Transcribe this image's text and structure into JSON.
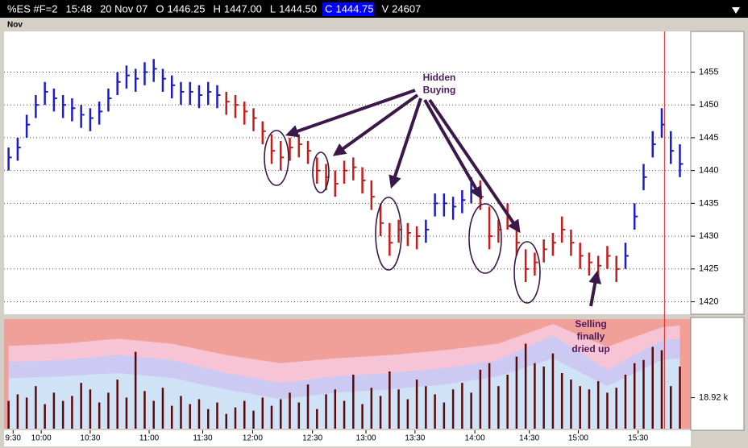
{
  "header": {
    "symbol": "%ES #F=2",
    "time": "15:48",
    "date": "20 Nov 07",
    "quotes": [
      {
        "label": "O",
        "value": "1446.25"
      },
      {
        "label": "H",
        "value": "1447.00"
      },
      {
        "label": "L",
        "value": "1444.50"
      },
      {
        "label": "C",
        "value": "1444.75"
      },
      {
        "label": "V",
        "value": "24607"
      }
    ],
    "month": "Nov"
  },
  "chart_data": {
    "type": "ohlc",
    "annotations": [
      {
        "lines": [
          "Hidden",
          "Buying"
        ]
      },
      {
        "lines": [
          "Selling",
          "finally",
          "dried up"
        ]
      }
    ],
    "ylim": [
      1418.1,
      1461.2
    ],
    "yticks": [
      1420,
      1425,
      1430,
      1435,
      1440,
      1445,
      1450,
      1455
    ],
    "grid": true,
    "xlim": [
      -0.5,
      75.2
    ],
    "xticks": [
      {
        "value": 0.5,
        "label": "9:30"
      },
      {
        "value": 3.6,
        "label": "10:00"
      },
      {
        "value": 9,
        "label": "10:30"
      },
      {
        "value": 15.5,
        "label": "11:00"
      },
      {
        "value": 21.4,
        "label": "11:30"
      },
      {
        "value": 26.9,
        "label": "12:00"
      },
      {
        "value": 33.5,
        "label": "12:30"
      },
      {
        "value": 39.4,
        "label": "13:00"
      },
      {
        "value": 44.8,
        "label": "13:30"
      },
      {
        "value": 51.4,
        "label": "14:00"
      },
      {
        "value": 57.4,
        "label": "14:30"
      },
      {
        "value": 62.8,
        "label": "15:00"
      },
      {
        "value": 69.4,
        "label": "15:30"
      }
    ],
    "cursor_index": 72.3,
    "cursor_color": "#e02020",
    "high": [
      1443.5,
      1445,
      1448.5,
      1451.5,
      1453.5,
      1452.5,
      1451.5,
      1451,
      1450,
      1449.5,
      1450.5,
      1452.5,
      1455,
      1456,
      1455.5,
      1456.5,
      1457,
      1455.5,
      1454.5,
      1453.5,
      1453.5,
      1453,
      1453.5,
      1453,
      1452,
      1451.5,
      1450.5,
      1449.5,
      1447.5,
      1445.5,
      1444.5,
      1445,
      1445.5,
      1444.5,
      1442,
      1441,
      1440,
      1441.5,
      1442,
      1440.5,
      1438.5,
      1435,
      1432,
      1432.5,
      1432,
      1431.5,
      1432.5,
      1436.5,
      1436.5,
      1436,
      1437,
      1439,
      1438.5,
      1434.5,
      1432.5,
      1435,
      1431.5,
      1428,
      1427.5,
      1429.5,
      1430.5,
      1433,
      1431,
      1429,
      1427.5,
      1427,
      1428.5,
      1427,
      1429,
      1435,
      1441,
      1446,
      1449.5,
      1446,
      1444
    ],
    "low": [
      1440,
      1441.5,
      1445,
      1448,
      1450,
      1449,
      1448,
      1447.5,
      1446.5,
      1446,
      1447,
      1449,
      1451.5,
      1452.5,
      1452,
      1453,
      1453.5,
      1452,
      1451,
      1450,
      1450,
      1449.5,
      1450,
      1449.5,
      1448.5,
      1448,
      1447,
      1446,
      1444,
      1441,
      1440,
      1441.5,
      1442,
      1441,
      1438,
      1437,
      1436,
      1438,
      1438.5,
      1436.5,
      1434,
      1430,
      1427,
      1429,
      1428.5,
      1428,
      1429,
      1433,
      1433,
      1432.5,
      1433.5,
      1435,
      1434,
      1428,
      1429,
      1431,
      1427,
      1423,
      1424,
      1426,
      1427,
      1429,
      1427,
      1425,
      1424,
      1423.5,
      1425,
      1423,
      1425,
      1431,
      1437,
      1442,
      1445,
      1441,
      1439
    ],
    "close": [
      1442,
      1443.5,
      1447,
      1450,
      1452,
      1451,
      1450,
      1449.5,
      1448.5,
      1448,
      1449,
      1451,
      1453.5,
      1454.5,
      1454,
      1455,
      1455.5,
      1454,
      1453,
      1452,
      1452,
      1451.5,
      1452,
      1451.5,
      1450.5,
      1450,
      1449,
      1448,
      1446,
      1443,
      1442,
      1443.5,
      1444,
      1443,
      1440,
      1439,
      1438,
      1440,
      1440.5,
      1438.5,
      1436,
      1432,
      1429,
      1431,
      1430.5,
      1430,
      1431,
      1435,
      1435,
      1434.5,
      1435.5,
      1437,
      1436,
      1430,
      1431,
      1433,
      1429,
      1425,
      1426,
      1428,
      1429,
      1431,
      1429,
      1427,
      1426,
      1425.5,
      1427,
      1425,
      1427,
      1433,
      1439,
      1444,
      1447,
      1443,
      1441
    ],
    "bar_colors": [
      "#1c1cc8",
      "#1c1cc8",
      "#1c1cc8",
      "#1c1cc8",
      "#1c1cc8",
      "#1c1cc8",
      "#1c1cc8",
      "#1c1cc8",
      "#1c1cc8",
      "#1c1cc8",
      "#1c1cc8",
      "#1c1cc8",
      "#1c1cc8",
      "#1c1cc8",
      "#1c1cc8",
      "#1c1cc8",
      "#1c1cc8",
      "#1c1cc8",
      "#1c1cc8",
      "#1c1cc8",
      "#1c1cc8",
      "#1c1cc8",
      "#1c1cc8",
      "#1c1cc8",
      "#c81c1c",
      "#c81c1c",
      "#c81c1c",
      "#c81c1c",
      "#c81c1c",
      "#c81c1c",
      "#c81c1c",
      "#c81c1c",
      "#c81c1c",
      "#c81c1c",
      "#c81c1c",
      "#c81c1c",
      "#c81c1c",
      "#c81c1c",
      "#c81c1c",
      "#c81c1c",
      "#c81c1c",
      "#c81c1c",
      "#c81c1c",
      "#c81c1c",
      "#c81c1c",
      "#c81c1c",
      "#1c1cc8",
      "#1c1cc8",
      "#1c1cc8",
      "#1c1cc8",
      "#1c1cc8",
      "#1c1cc8",
      "#c81c1c",
      "#c81c1c",
      "#c81c1c",
      "#c81c1c",
      "#c81c1c",
      "#c81c1c",
      "#c81c1c",
      "#c81c1c",
      "#c81c1c",
      "#c81c1c",
      "#c81c1c",
      "#c81c1c",
      "#c81c1c",
      "#c81c1c",
      "#c81c1c",
      "#c81c1c",
      "#1c1cc8",
      "#1c1cc8",
      "#1c1cc8",
      "#1c1cc8",
      "#1c1cc8",
      "#1c1cc8",
      "#1c1cc8"
    ],
    "volume": {
      "color": "#5a0a0a",
      "background": "#f0a098",
      "ylim": [
        0,
        67000
      ],
      "yticks": [
        {
          "value": 18920,
          "label": "18.92 k"
        }
      ],
      "values": [
        17000,
        21000,
        19000,
        26000,
        15000,
        22000,
        17000,
        20000,
        28000,
        24000,
        16000,
        22000,
        30000,
        19000,
        47000,
        23000,
        17000,
        25000,
        14000,
        20000,
        15000,
        18000,
        12000,
        16000,
        9000,
        13000,
        17000,
        11000,
        19000,
        14000,
        18000,
        22000,
        16000,
        27000,
        12000,
        21000,
        24000,
        17000,
        33000,
        15000,
        25000,
        20000,
        35000,
        24000,
        18000,
        30000,
        26000,
        21000,
        16000,
        24000,
        28000,
        22000,
        36000,
        40000,
        26000,
        33000,
        44000,
        52000,
        40000,
        38000,
        46000,
        34000,
        30000,
        26000,
        24000,
        29000,
        22000,
        25000,
        33000,
        40000,
        42000,
        50000,
        48000,
        26000,
        38000
      ],
      "band_index": [
        0,
        6,
        12,
        18,
        24,
        30,
        36,
        42,
        48,
        54,
        60,
        66,
        72,
        74
      ],
      "bands": [
        {
          "color": "#f6c4d4",
          "values": [
            50600,
            52000,
            55000,
            52000,
            45000,
            40000,
            43000,
            45000,
            48000,
            52000,
            64000,
            50000,
            62000,
            63000
          ]
        },
        {
          "color": "#cccaf2",
          "values": [
            40700,
            42000,
            45000,
            42000,
            34000,
            28000,
            32000,
            34000,
            37000,
            42000,
            57000,
            36000,
            54000,
            55000
          ]
        },
        {
          "color": "#cfe2f6",
          "values": [
            30700,
            32000,
            34000,
            31000,
            24000,
            18000,
            22000,
            24000,
            27000,
            32000,
            43000,
            26000,
            42000,
            43000
          ]
        }
      ]
    }
  }
}
